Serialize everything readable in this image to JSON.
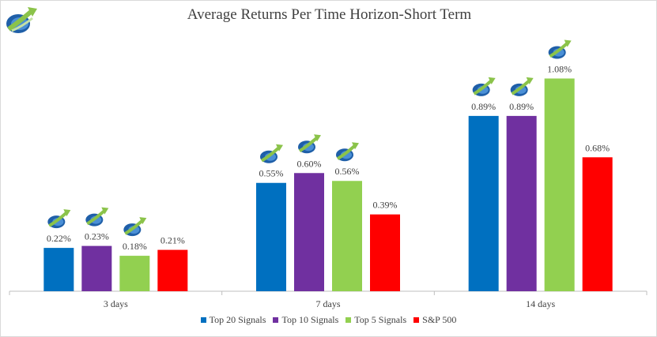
{
  "logo": {
    "icon": "arrow-logo-icon"
  },
  "chart_data": {
    "type": "bar",
    "title": "Average Returns Per Time Horizon-Short Term",
    "xlabel": "",
    "ylabel": "",
    "ylim": [
      0,
      1.15
    ],
    "categories": [
      "3 days",
      "7 days",
      "14 days"
    ],
    "series": [
      {
        "name": "Top 20 Signals",
        "color": "#0070c0",
        "values": [
          0.22,
          0.55,
          0.89
        ],
        "labels": [
          "0.22%",
          "0.55%",
          "0.89%"
        ]
      },
      {
        "name": "Top 10 Signals",
        "color": "#7030a0",
        "values": [
          0.23,
          0.6,
          0.89
        ],
        "labels": [
          "0.23%",
          "0.60%",
          "0.89%"
        ]
      },
      {
        "name": "Top 5 Signals",
        "color": "#92d050",
        "values": [
          0.18,
          0.56,
          1.08
        ],
        "labels": [
          "0.18%",
          "0.56%",
          "1.08%"
        ]
      },
      {
        "name": "S&P 500",
        "color": "#ff0000",
        "values": [
          0.21,
          0.39,
          0.68
        ],
        "labels": [
          "0.21%",
          "0.39%",
          "0.68%"
        ]
      }
    ],
    "marker_icon": "arrow-logo-icon",
    "grid": false,
    "legend_position": "bottom"
  }
}
